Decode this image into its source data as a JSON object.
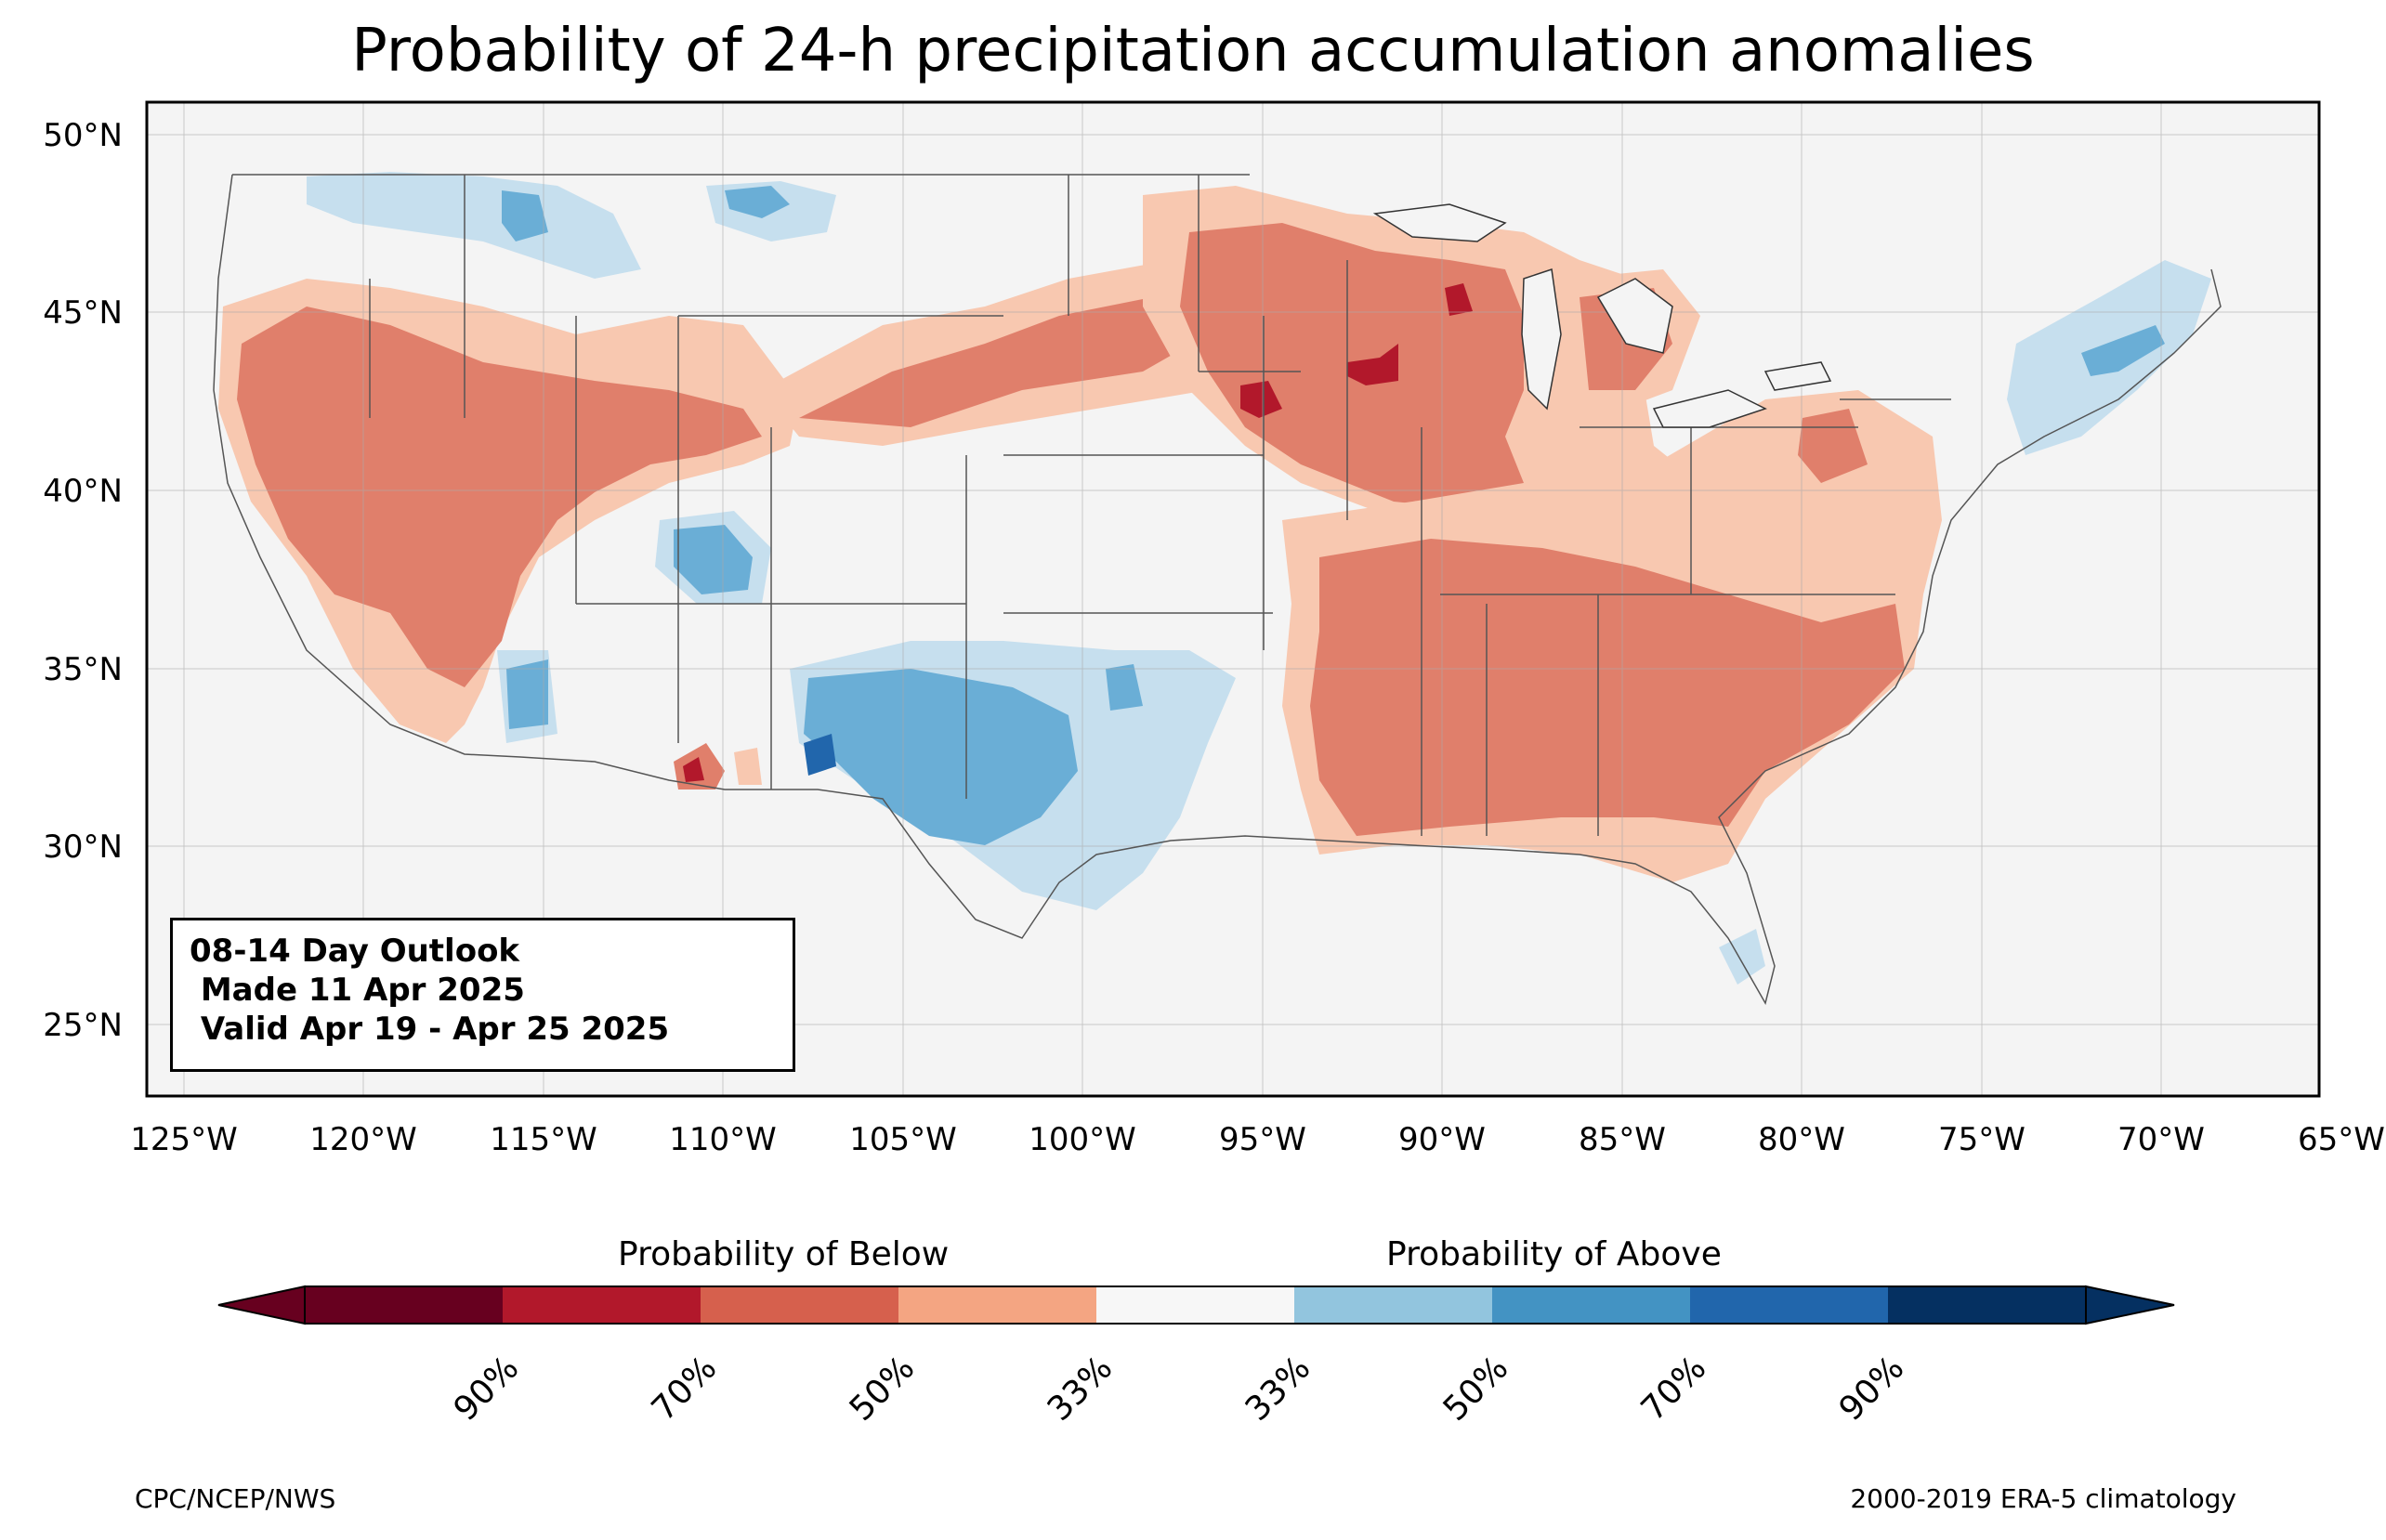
{
  "title": "Probability of 24-h precipitation accumulation anomalies",
  "outlook": {
    "line1": "08-14 Day Outlook",
    "line2": " Made 11 Apr 2025",
    "line3": " Valid Apr 19 - Apr 25 2025"
  },
  "axes": {
    "lat_labels": [
      "50°N",
      "45°N",
      "40°N",
      "35°N",
      "30°N",
      "25°N"
    ],
    "lon_labels": [
      "125°W",
      "120°W",
      "115°W",
      "110°W",
      "105°W",
      "100°W",
      "95°W",
      "90°W",
      "85°W",
      "80°W",
      "75°W",
      "70°W",
      "65°W"
    ]
  },
  "colorbar": {
    "below_title": "Probability of Below",
    "above_title": "Probability of Above",
    "tick_labels": [
      "90%",
      "70%",
      "50%",
      "33%",
      "33%",
      "50%",
      "70%",
      "90%"
    ],
    "colors": [
      "#67001f",
      "#b2182b",
      "#d6604d",
      "#f4a582",
      "#f7f7f7",
      "#92c5de",
      "#4393c3",
      "#2166ac",
      "#053061"
    ]
  },
  "palette": {
    "below_33": "#f8c8b0",
    "below_50": "#e07f6b",
    "below_70": "#b2182b",
    "above_33": "#c6dfee",
    "above_50": "#6aaed6",
    "above_70": "#2166ac",
    "background": "#f4f4f4"
  },
  "footer": {
    "left": "CPC/NCEP/NWS",
    "right": "2000-2019 ERA-5 climatology"
  }
}
